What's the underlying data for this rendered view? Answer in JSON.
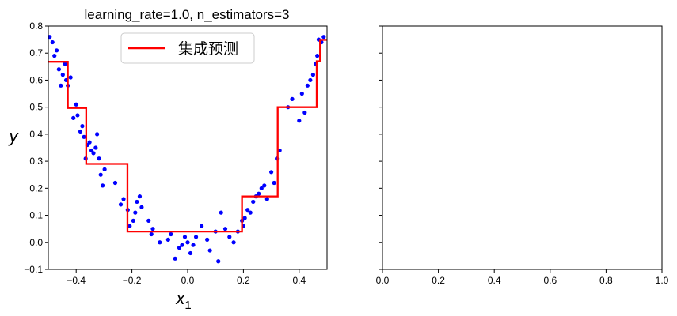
{
  "chart_data": [
    {
      "type": "scatter",
      "title": "learning_rate=1.0, n_estimators=3",
      "xlabel_main": "x",
      "xlabel_sub": "1",
      "ylabel": "y",
      "xlim": [
        -0.5,
        0.5
      ],
      "ylim": [
        -0.1,
        0.8
      ],
      "xticks": [
        -0.4,
        -0.2,
        0.0,
        0.2,
        0.4
      ],
      "xtick_labels": [
        "−0.4",
        "−0.2",
        "0.0",
        "0.2",
        "0.4"
      ],
      "yticks": [
        -0.1,
        0.0,
        0.1,
        0.2,
        0.3,
        0.4,
        0.5,
        0.6,
        0.7,
        0.8
      ],
      "ytick_labels": [
        "−0.1",
        "0.0",
        "0.1",
        "0.2",
        "0.3",
        "0.4",
        "0.5",
        "0.6",
        "0.7",
        "0.8"
      ],
      "legend_position": "upper-center",
      "series": [
        {
          "name": "",
          "kind": "scatter",
          "color": "#0000ff",
          "x": [
            -0.495,
            -0.485,
            -0.478,
            -0.47,
            -0.462,
            -0.455,
            -0.448,
            -0.44,
            -0.436,
            -0.43,
            -0.42,
            -0.41,
            -0.4,
            -0.395,
            -0.385,
            -0.378,
            -0.372,
            -0.366,
            -0.36,
            -0.352,
            -0.345,
            -0.338,
            -0.33,
            -0.325,
            -0.318,
            -0.312,
            -0.305,
            -0.298,
            -0.26,
            -0.24,
            -0.23,
            -0.215,
            -0.208,
            -0.195,
            -0.188,
            -0.182,
            -0.172,
            -0.165,
            -0.14,
            -0.13,
            -0.125,
            -0.1,
            -0.07,
            -0.06,
            -0.045,
            -0.03,
            -0.02,
            -0.01,
            0.0,
            0.01,
            0.02,
            0.03,
            0.05,
            0.07,
            0.08,
            0.1,
            0.11,
            0.12,
            0.135,
            0.15,
            0.165,
            0.18,
            0.195,
            0.2,
            0.205,
            0.215,
            0.225,
            0.235,
            0.245,
            0.255,
            0.265,
            0.275,
            0.285,
            0.3,
            0.31,
            0.32,
            0.33,
            0.36,
            0.375,
            0.4,
            0.41,
            0.42,
            0.43,
            0.44,
            0.45,
            0.46,
            0.465,
            0.47,
            0.48,
            0.488
          ],
          "y": [
            0.76,
            0.74,
            0.69,
            0.71,
            0.64,
            0.58,
            0.62,
            0.66,
            0.6,
            0.58,
            0.61,
            0.46,
            0.51,
            0.47,
            0.41,
            0.43,
            0.39,
            0.31,
            0.36,
            0.37,
            0.34,
            0.33,
            0.35,
            0.4,
            0.31,
            0.25,
            0.21,
            0.27,
            0.22,
            0.14,
            0.16,
            0.12,
            0.06,
            0.08,
            0.11,
            0.15,
            0.17,
            0.13,
            0.08,
            0.03,
            0.05,
            0.0,
            0.01,
            0.03,
            -0.06,
            -0.02,
            -0.01,
            0.02,
            0.0,
            -0.04,
            -0.01,
            0.02,
            0.06,
            0.01,
            -0.03,
            0.04,
            -0.07,
            0.11,
            0.05,
            0.02,
            0.0,
            0.04,
            0.08,
            0.06,
            0.09,
            0.12,
            0.11,
            0.15,
            0.17,
            0.18,
            0.2,
            0.21,
            0.16,
            0.26,
            0.22,
            0.31,
            0.34,
            0.5,
            0.53,
            0.45,
            0.55,
            0.48,
            0.58,
            0.6,
            0.62,
            0.66,
            0.69,
            0.75,
            0.74,
            0.76
          ]
        },
        {
          "name": "集成预测",
          "kind": "step",
          "color": "#ff0000",
          "x": [
            -0.5,
            -0.43,
            -0.43,
            -0.364,
            -0.364,
            -0.216,
            -0.216,
            0.195,
            0.195,
            0.323,
            0.323,
            0.463,
            0.463,
            0.475,
            0.475,
            0.5
          ],
          "y": [
            0.668,
            0.668,
            0.497,
            0.497,
            0.29,
            0.29,
            0.04,
            0.04,
            0.17,
            0.17,
            0.5,
            0.5,
            0.67,
            0.67,
            0.749,
            0.749
          ]
        }
      ]
    },
    {
      "type": "scatter",
      "title": "",
      "xlim": [
        0.0,
        1.0
      ],
      "ylim": [
        -0.1,
        0.8
      ],
      "xticks": [
        0.0,
        0.2,
        0.4,
        0.6,
        0.8,
        1.0
      ],
      "xtick_labels": [
        "0.0",
        "0.2",
        "0.4",
        "0.6",
        "0.8",
        "1.0"
      ],
      "yticks": [
        -0.1,
        0.0,
        0.1,
        0.2,
        0.3,
        0.4,
        0.5,
        0.6,
        0.7,
        0.8
      ],
      "ytick_labels": [
        "",
        "",
        "",
        "",
        "",
        "",
        "",
        "",
        "",
        ""
      ],
      "series": []
    }
  ]
}
